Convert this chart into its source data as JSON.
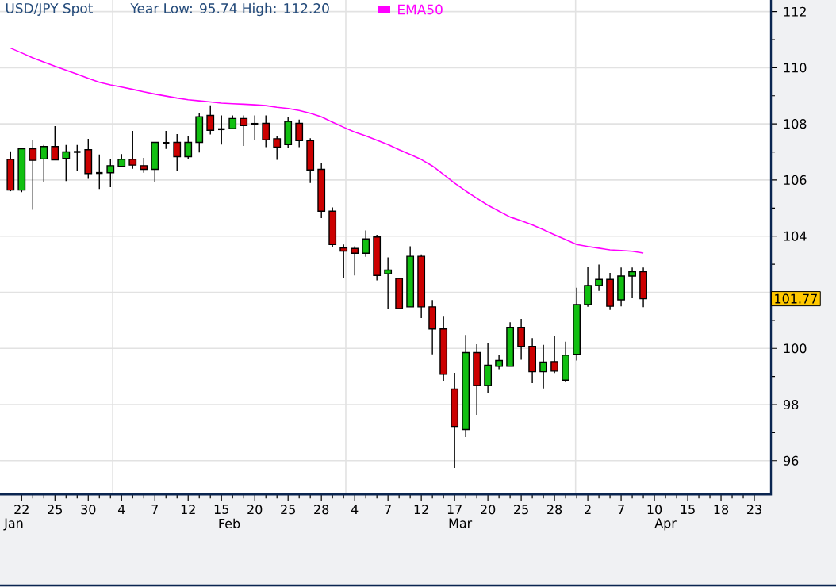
{
  "chart_data": {
    "type": "candlestick",
    "title": "USD/JPY Spot",
    "subtitle": "Year Low: 95.74 High: 112.20",
    "categories": [
      null,
      "22",
      null,
      null,
      "25",
      null,
      null,
      "30",
      null,
      null,
      "4",
      null,
      null,
      "7",
      null,
      null,
      "12",
      null,
      null,
      "15",
      null,
      null,
      "20",
      null,
      null,
      "25",
      null,
      null,
      "28",
      null,
      null,
      "4",
      null,
      null,
      "7",
      null,
      null,
      "12",
      null,
      null,
      "17",
      null,
      null,
      "20",
      null,
      null,
      "25",
      null,
      null,
      "28",
      null,
      null,
      "2",
      null,
      null,
      "7",
      null,
      null,
      "10",
      null,
      null,
      "15",
      null,
      null,
      "18",
      null,
      null,
      "23"
    ],
    "ohlc": [
      [
        106.74,
        107.02,
        105.6,
        105.64
      ],
      [
        105.64,
        107.15,
        105.57,
        107.11
      ],
      [
        107.11,
        107.43,
        104.94,
        106.7
      ],
      [
        106.75,
        107.25,
        105.92,
        107.19
      ],
      [
        107.19,
        107.92,
        106.72,
        106.72
      ],
      [
        106.77,
        107.25,
        105.96,
        107.0
      ],
      [
        107.0,
        107.25,
        106.34,
        107.0
      ],
      [
        107.08,
        107.47,
        106.04,
        106.23
      ],
      [
        106.25,
        106.91,
        105.68,
        106.25
      ],
      [
        106.26,
        106.74,
        105.74,
        106.51
      ],
      [
        106.49,
        106.92,
        106.49,
        106.74
      ],
      [
        106.74,
        107.75,
        106.4,
        106.53
      ],
      [
        106.51,
        106.79,
        106.26,
        106.38
      ],
      [
        106.38,
        107.34,
        105.92,
        107.34
      ],
      [
        107.32,
        107.75,
        107.11,
        107.32
      ],
      [
        107.34,
        107.64,
        106.32,
        106.83
      ],
      [
        106.83,
        107.58,
        106.75,
        107.34
      ],
      [
        107.34,
        108.38,
        106.98,
        108.25
      ],
      [
        108.3,
        108.66,
        107.62,
        107.77
      ],
      [
        107.81,
        108.3,
        107.26,
        107.81
      ],
      [
        107.83,
        108.3,
        107.83,
        108.19
      ],
      [
        108.19,
        108.3,
        107.21,
        107.94
      ],
      [
        108.0,
        108.3,
        107.43,
        108.0
      ],
      [
        108.02,
        108.3,
        107.17,
        107.43
      ],
      [
        107.47,
        107.58,
        106.72,
        107.17
      ],
      [
        107.26,
        108.26,
        107.13,
        108.09
      ],
      [
        108.02,
        108.15,
        107.17,
        107.4
      ],
      [
        107.4,
        107.49,
        105.89,
        106.36
      ],
      [
        106.38,
        106.62,
        104.64,
        104.89
      ],
      [
        104.89,
        105.02,
        103.6,
        103.7
      ],
      [
        103.58,
        103.7,
        102.51,
        103.47
      ],
      [
        103.56,
        103.64,
        102.6,
        103.39
      ],
      [
        103.39,
        104.2,
        103.26,
        103.9
      ],
      [
        103.97,
        104.05,
        102.42,
        102.6
      ],
      [
        102.66,
        103.24,
        101.42,
        102.79
      ],
      [
        102.49,
        102.49,
        101.42,
        101.42
      ],
      [
        101.48,
        103.64,
        101.48,
        103.28
      ],
      [
        103.28,
        103.35,
        101.08,
        101.48
      ],
      [
        101.48,
        101.72,
        99.79,
        100.69
      ],
      [
        100.69,
        101.16,
        98.85,
        99.08
      ],
      [
        98.55,
        99.13,
        95.74,
        97.22
      ],
      [
        97.11,
        100.48,
        96.84,
        99.85
      ],
      [
        99.85,
        100.15,
        97.63,
        98.68
      ],
      [
        98.68,
        100.2,
        98.42,
        99.4
      ],
      [
        99.36,
        99.75,
        99.26,
        99.57
      ],
      [
        99.36,
        100.93,
        99.36,
        100.75
      ],
      [
        100.75,
        101.05,
        99.6,
        100.07
      ],
      [
        100.07,
        100.37,
        98.76,
        99.17
      ],
      [
        99.17,
        100.13,
        98.57,
        99.51
      ],
      [
        99.53,
        100.43,
        99.12,
        99.19
      ],
      [
        98.87,
        100.24,
        98.82,
        99.76
      ],
      [
        99.79,
        102.16,
        99.57,
        101.56
      ],
      [
        101.56,
        102.91,
        101.48,
        102.24
      ],
      [
        102.24,
        102.99,
        102.05,
        102.46
      ],
      [
        102.46,
        102.69,
        101.37,
        101.5
      ],
      [
        101.73,
        102.88,
        101.5,
        102.58
      ],
      [
        102.58,
        102.88,
        101.79,
        102.73
      ],
      [
        102.73,
        102.88,
        101.47,
        101.77
      ],
      null,
      null,
      null,
      null,
      null,
      null,
      null,
      null,
      null,
      null
    ],
    "series": [
      {
        "name": "EMA50",
        "type": "line",
        "color": "#ff00ff",
        "values": [
          110.7,
          110.53,
          110.35,
          110.2,
          110.05,
          109.91,
          109.77,
          109.62,
          109.48,
          109.39,
          109.31,
          109.23,
          109.14,
          109.06,
          108.99,
          108.92,
          108.86,
          108.82,
          108.78,
          108.74,
          108.72,
          108.7,
          108.68,
          108.65,
          108.59,
          108.55,
          108.48,
          108.38,
          108.25,
          108.06,
          107.88,
          107.71,
          107.57,
          107.42,
          107.26,
          107.08,
          106.91,
          106.73,
          106.5,
          106.2,
          105.89,
          105.61,
          105.35,
          105.1,
          104.89,
          104.68,
          104.55,
          104.4,
          104.23,
          104.05,
          103.88,
          103.7,
          103.63,
          103.57,
          103.51,
          103.49,
          103.46,
          103.4,
          null,
          null,
          null,
          null,
          null,
          null,
          null,
          null,
          null,
          null
        ]
      }
    ],
    "ylim": [
      94.8,
      113
    ],
    "yticks": [
      96,
      98,
      100,
      {
        "value": 102,
        "label": null
      },
      104,
      106,
      108,
      110,
      112
    ],
    "grid": true,
    "annotations": [
      "101.77",
      "Jan",
      "Feb",
      "Mar",
      "Apr"
    ],
    "legend": "top"
  }
}
